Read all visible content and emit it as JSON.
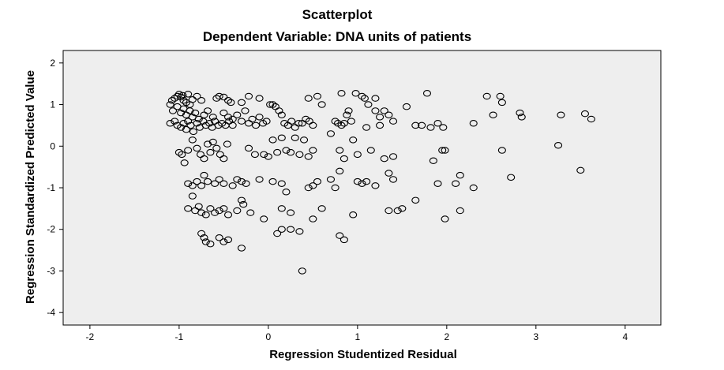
{
  "chart_data": {
    "type": "scatter",
    "title": "Scatterplot",
    "subtitle": "Dependent Variable: DNA units of patients",
    "xlabel": "Regression Studentized Residual",
    "ylabel": "Regression Standardized Predicted Value",
    "xlim": [
      -2.3,
      4.4
    ],
    "ylim": [
      -4.3,
      2.3
    ],
    "xticks": [
      -2,
      -1,
      0,
      1,
      2,
      3,
      4
    ],
    "yticks": [
      -4,
      -3,
      -2,
      -1,
      0,
      1,
      2
    ],
    "grid": false,
    "legend": "none",
    "plot_background": "#eeeeee",
    "marker_color": "#000000",
    "points": [
      [
        -1.1,
        1.0
      ],
      [
        -1.08,
        1.1
      ],
      [
        -1.05,
        1.15
      ],
      [
        -1.02,
        1.2
      ],
      [
        -1.0,
        1.25
      ],
      [
        -0.98,
        1.18
      ],
      [
        -0.96,
        1.22
      ],
      [
        -0.95,
        1.1
      ],
      [
        -0.92,
        1.05
      ],
      [
        -0.9,
        1.25
      ],
      [
        -0.88,
        1.0
      ],
      [
        -0.85,
        1.12
      ],
      [
        -0.8,
        1.2
      ],
      [
        -0.75,
        1.1
      ],
      [
        -1.07,
        0.85
      ],
      [
        -1.02,
        0.95
      ],
      [
        -0.98,
        0.8
      ],
      [
        -0.95,
        0.9
      ],
      [
        -0.92,
        0.75
      ],
      [
        -0.88,
        0.85
      ],
      [
        -0.85,
        0.7
      ],
      [
        -0.82,
        0.8
      ],
      [
        -0.78,
        0.65
      ],
      [
        -0.72,
        0.75
      ],
      [
        -0.68,
        0.85
      ],
      [
        -0.62,
        0.7
      ],
      [
        -1.1,
        0.55
      ],
      [
        -1.05,
        0.6
      ],
      [
        -1.02,
        0.5
      ],
      [
        -0.98,
        0.45
      ],
      [
        -0.95,
        0.55
      ],
      [
        -0.92,
        0.4
      ],
      [
        -0.9,
        0.6
      ],
      [
        -0.87,
        0.5
      ],
      [
        -0.84,
        0.35
      ],
      [
        -0.8,
        0.55
      ],
      [
        -0.77,
        0.45
      ],
      [
        -0.73,
        0.6
      ],
      [
        -0.7,
        0.5
      ],
      [
        -0.66,
        0.55
      ],
      [
        -0.63,
        0.45
      ],
      [
        -0.6,
        0.6
      ],
      [
        -0.56,
        0.5
      ],
      [
        -0.52,
        0.55
      ],
      [
        -0.48,
        0.5
      ],
      [
        -0.44,
        0.6
      ],
      [
        -0.4,
        0.5
      ],
      [
        -0.58,
        1.15
      ],
      [
        -0.55,
        1.2
      ],
      [
        -0.5,
        1.18
      ],
      [
        -0.45,
        1.1
      ],
      [
        -0.42,
        1.05
      ],
      [
        -0.3,
        1.05
      ],
      [
        -0.22,
        1.2
      ],
      [
        -0.1,
        1.15
      ],
      [
        -0.5,
        0.8
      ],
      [
        -0.45,
        0.7
      ],
      [
        -0.4,
        0.65
      ],
      [
        -0.35,
        0.75
      ],
      [
        -0.3,
        0.6
      ],
      [
        -0.26,
        0.85
      ],
      [
        -0.22,
        0.55
      ],
      [
        -0.18,
        0.65
      ],
      [
        -0.14,
        0.5
      ],
      [
        -0.1,
        0.7
      ],
      [
        -0.06,
        0.55
      ],
      [
        -0.02,
        0.6
      ],
      [
        0.02,
        1.0
      ],
      [
        0.05,
        1.0
      ],
      [
        0.08,
        0.95
      ],
      [
        0.12,
        0.85
      ],
      [
        0.15,
        0.75
      ],
      [
        0.18,
        0.55
      ],
      [
        0.22,
        0.5
      ],
      [
        0.26,
        0.6
      ],
      [
        0.3,
        0.45
      ],
      [
        0.34,
        0.55
      ],
      [
        0.38,
        0.55
      ],
      [
        0.42,
        0.65
      ],
      [
        0.46,
        0.6
      ],
      [
        0.5,
        0.5
      ],
      [
        0.45,
        1.15
      ],
      [
        0.55,
        1.2
      ],
      [
        0.6,
        1.0
      ],
      [
        0.7,
        0.3
      ],
      [
        0.75,
        0.6
      ],
      [
        0.78,
        0.55
      ],
      [
        0.82,
        0.5
      ],
      [
        0.85,
        0.55
      ],
      [
        0.88,
        0.75
      ],
      [
        0.9,
        0.85
      ],
      [
        0.93,
        0.6
      ],
      [
        0.82,
        1.27
      ],
      [
        0.98,
        1.27
      ],
      [
        1.05,
        1.2
      ],
      [
        1.08,
        1.15
      ],
      [
        1.12,
        1.0
      ],
      [
        1.2,
        0.85
      ],
      [
        1.25,
        0.7
      ],
      [
        1.3,
        0.85
      ],
      [
        1.35,
        0.75
      ],
      [
        1.4,
        0.6
      ],
      [
        1.25,
        0.5
      ],
      [
        1.1,
        0.45
      ],
      [
        1.2,
        1.15
      ],
      [
        1.55,
        0.95
      ],
      [
        1.65,
        0.5
      ],
      [
        1.72,
        0.5
      ],
      [
        1.78,
        1.27
      ],
      [
        1.82,
        0.45
      ],
      [
        1.9,
        0.55
      ],
      [
        1.96,
        0.45
      ],
      [
        2.3,
        0.55
      ],
      [
        2.45,
        1.2
      ],
      [
        2.52,
        0.75
      ],
      [
        2.6,
        1.2
      ],
      [
        2.62,
        1.05
      ],
      [
        2.82,
        0.8
      ],
      [
        2.84,
        0.7
      ],
      [
        3.28,
        0.75
      ],
      [
        3.55,
        0.78
      ],
      [
        3.62,
        0.65
      ],
      [
        -1.0,
        -0.15
      ],
      [
        -0.97,
        -0.2
      ],
      [
        -0.94,
        -0.4
      ],
      [
        -0.9,
        -0.1
      ],
      [
        -0.85,
        0.15
      ],
      [
        -0.8,
        -0.05
      ],
      [
        -0.76,
        -0.2
      ],
      [
        -0.72,
        -0.3
      ],
      [
        -0.68,
        0.05
      ],
      [
        -0.65,
        -0.15
      ],
      [
        -0.62,
        0.1
      ],
      [
        -0.58,
        -0.05
      ],
      [
        -0.54,
        -0.2
      ],
      [
        -0.5,
        -0.3
      ],
      [
        -0.46,
        0.05
      ],
      [
        -0.22,
        -0.05
      ],
      [
        -0.15,
        -0.2
      ],
      [
        -0.05,
        -0.2
      ],
      [
        0.0,
        -0.25
      ],
      [
        0.05,
        0.15
      ],
      [
        0.1,
        -0.15
      ],
      [
        0.15,
        0.2
      ],
      [
        0.2,
        -0.1
      ],
      [
        0.25,
        -0.15
      ],
      [
        0.3,
        0.2
      ],
      [
        0.35,
        -0.2
      ],
      [
        0.4,
        0.15
      ],
      [
        0.45,
        -0.25
      ],
      [
        0.5,
        -0.1
      ],
      [
        0.8,
        -0.1
      ],
      [
        0.85,
        -0.3
      ],
      [
        0.95,
        0.15
      ],
      [
        1.0,
        -0.2
      ],
      [
        1.15,
        -0.1
      ],
      [
        1.3,
        -0.3
      ],
      [
        1.4,
        -0.25
      ],
      [
        1.85,
        -0.35
      ],
      [
        1.95,
        -0.1
      ],
      [
        1.98,
        -0.1
      ],
      [
        2.62,
        -0.1
      ],
      [
        3.25,
        0.02
      ],
      [
        3.5,
        -0.58
      ],
      [
        -0.9,
        -0.9
      ],
      [
        -0.85,
        -0.95
      ],
      [
        -0.8,
        -0.85
      ],
      [
        -0.75,
        -0.95
      ],
      [
        -0.72,
        -0.7
      ],
      [
        -0.68,
        -0.85
      ],
      [
        -0.6,
        -0.9
      ],
      [
        -0.55,
        -0.8
      ],
      [
        -0.5,
        -0.9
      ],
      [
        -0.4,
        -0.95
      ],
      [
        -0.35,
        -0.8
      ],
      [
        -0.3,
        -0.85
      ],
      [
        -0.25,
        -0.9
      ],
      [
        -0.1,
        -0.8
      ],
      [
        0.05,
        -0.85
      ],
      [
        0.15,
        -0.9
      ],
      [
        0.2,
        -1.1
      ],
      [
        0.45,
        -1.0
      ],
      [
        0.5,
        -0.95
      ],
      [
        0.55,
        -0.85
      ],
      [
        0.7,
        -0.8
      ],
      [
        0.75,
        -1.0
      ],
      [
        0.8,
        -0.6
      ],
      [
        1.0,
        -0.85
      ],
      [
        1.05,
        -0.9
      ],
      [
        1.1,
        -0.85
      ],
      [
        1.2,
        -0.95
      ],
      [
        1.35,
        -0.65
      ],
      [
        1.4,
        -0.8
      ],
      [
        1.9,
        -0.9
      ],
      [
        2.1,
        -0.9
      ],
      [
        2.15,
        -0.7
      ],
      [
        2.3,
        -1.0
      ],
      [
        2.72,
        -0.75
      ],
      [
        -0.85,
        -1.2
      ],
      [
        -0.9,
        -1.5
      ],
      [
        -0.82,
        -1.55
      ],
      [
        -0.78,
        -1.45
      ],
      [
        -0.75,
        -1.6
      ],
      [
        -0.7,
        -1.65
      ],
      [
        -0.65,
        -1.5
      ],
      [
        -0.6,
        -1.6
      ],
      [
        -0.55,
        -1.55
      ],
      [
        -0.5,
        -1.5
      ],
      [
        -0.45,
        -1.65
      ],
      [
        -0.35,
        -1.55
      ],
      [
        -0.3,
        -1.3
      ],
      [
        -0.28,
        -1.4
      ],
      [
        -0.2,
        -1.6
      ],
      [
        -0.05,
        -1.75
      ],
      [
        0.15,
        -1.5
      ],
      [
        0.25,
        -1.6
      ],
      [
        0.5,
        -1.75
      ],
      [
        0.6,
        -1.5
      ],
      [
        0.95,
        -1.65
      ],
      [
        1.35,
        -1.55
      ],
      [
        1.45,
        -1.55
      ],
      [
        1.5,
        -1.5
      ],
      [
        1.65,
        -1.3
      ],
      [
        1.98,
        -1.75
      ],
      [
        2.15,
        -1.55
      ],
      [
        -0.75,
        -2.1
      ],
      [
        -0.72,
        -2.2
      ],
      [
        -0.7,
        -2.3
      ],
      [
        -0.65,
        -2.35
      ],
      [
        -0.55,
        -2.2
      ],
      [
        -0.5,
        -2.3
      ],
      [
        -0.45,
        -2.25
      ],
      [
        -0.3,
        -2.45
      ],
      [
        0.1,
        -2.1
      ],
      [
        0.15,
        -2.0
      ],
      [
        0.25,
        -2.0
      ],
      [
        0.35,
        -2.05
      ],
      [
        0.8,
        -2.15
      ],
      [
        0.85,
        -2.25
      ],
      [
        0.38,
        -3.0
      ]
    ]
  }
}
